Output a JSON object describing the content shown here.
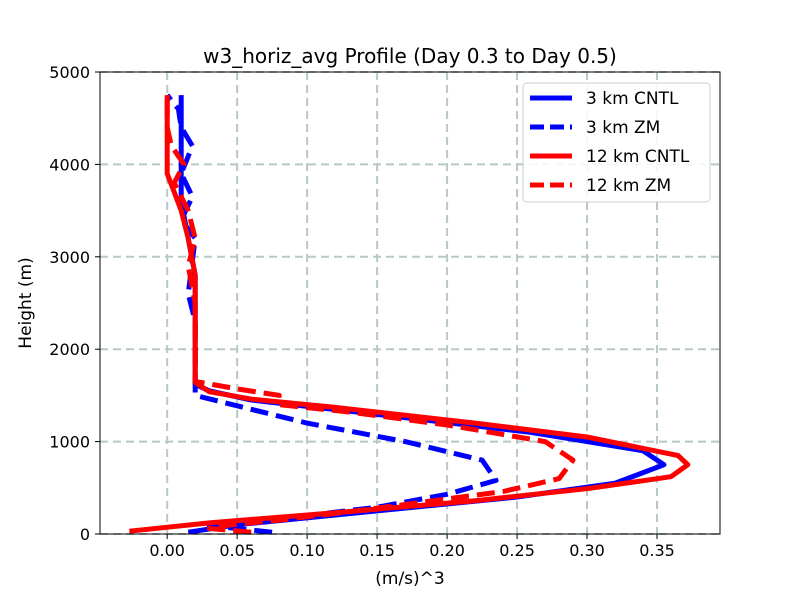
{
  "chart_data": {
    "type": "line",
    "title": "w3_horiz_avg Profile (Day 0.3 to Day 0.5)",
    "xlabel": "(m/s)^3",
    "ylabel": "Height (m)",
    "xlim": [
      -0.048,
      0.395
    ],
    "ylim": [
      0,
      5000
    ],
    "xticks": [
      0.0,
      0.05,
      0.1,
      0.15,
      0.2,
      0.25,
      0.3,
      0.35
    ],
    "xtick_labels": [
      "0.00",
      "0.05",
      "0.10",
      "0.15",
      "0.20",
      "0.25",
      "0.30",
      "0.35"
    ],
    "yticks": [
      0,
      1000,
      2000,
      3000,
      4000,
      5000
    ],
    "ytick_labels": [
      "0",
      "1000",
      "2000",
      "3000",
      "4000",
      "5000"
    ],
    "grid": true,
    "legend_position": "top-right",
    "series": [
      {
        "name": "3 km CNTL",
        "color": "#0000ff",
        "style": "solid",
        "points": [
          [
            0.015,
            20
          ],
          [
            0.05,
            100
          ],
          [
            0.15,
            250
          ],
          [
            0.25,
            400
          ],
          [
            0.32,
            550
          ],
          [
            0.355,
            750
          ],
          [
            0.34,
            900
          ],
          [
            0.26,
            1100
          ],
          [
            0.13,
            1330
          ],
          [
            0.06,
            1450
          ],
          [
            0.03,
            1550
          ],
          [
            0.02,
            1620
          ],
          [
            0.02,
            2500
          ],
          [
            0.02,
            2800
          ],
          [
            0.015,
            3200
          ],
          [
            0.01,
            3600
          ],
          [
            0.01,
            4000
          ],
          [
            0.01,
            4400
          ],
          [
            0.01,
            4750
          ]
        ]
      },
      {
        "name": "3 km ZM",
        "color": "#0000ff",
        "style": "dashed",
        "points": [
          [
            0.075,
            20
          ],
          [
            0.05,
            60
          ],
          [
            0.03,
            90
          ],
          [
            0.05,
            120
          ],
          [
            0.1,
            200
          ],
          [
            0.15,
            290
          ],
          [
            0.2,
            430
          ],
          [
            0.235,
            580
          ],
          [
            0.225,
            800
          ],
          [
            0.17,
            1000
          ],
          [
            0.1,
            1200
          ],
          [
            0.06,
            1350
          ],
          [
            0.02,
            1500
          ],
          [
            0.02,
            2300
          ],
          [
            0.015,
            2600
          ],
          [
            0.02,
            3200
          ],
          [
            0.01,
            3400
          ],
          [
            0.018,
            3650
          ],
          [
            0.01,
            3900
          ],
          [
            0.018,
            4200
          ],
          [
            0.01,
            4400
          ],
          [
            0.008,
            4600
          ],
          [
            0.0,
            4750
          ]
        ]
      },
      {
        "name": "12 km CNTL",
        "color": "#ff0000",
        "style": "solid",
        "points": [
          [
            -0.027,
            30
          ],
          [
            0.03,
            120
          ],
          [
            0.12,
            230
          ],
          [
            0.22,
            360
          ],
          [
            0.3,
            490
          ],
          [
            0.36,
            620
          ],
          [
            0.372,
            750
          ],
          [
            0.365,
            850
          ],
          [
            0.3,
            1050
          ],
          [
            0.22,
            1200
          ],
          [
            0.12,
            1370
          ],
          [
            0.06,
            1460
          ],
          [
            0.03,
            1540
          ],
          [
            0.02,
            1640
          ],
          [
            0.02,
            1750
          ],
          [
            0.02,
            2800
          ],
          [
            0.015,
            3200
          ],
          [
            0.01,
            3500
          ],
          [
            0.0,
            3900
          ],
          [
            0.0,
            4400
          ],
          [
            0.0,
            4750
          ]
        ]
      },
      {
        "name": "12 km ZM",
        "color": "#ff0000",
        "style": "dashed",
        "points": [
          [
            0.06,
            20
          ],
          [
            0.03,
            60
          ],
          [
            0.04,
            90
          ],
          [
            0.08,
            150
          ],
          [
            0.13,
            240
          ],
          [
            0.18,
            340
          ],
          [
            0.24,
            460
          ],
          [
            0.28,
            600
          ],
          [
            0.29,
            800
          ],
          [
            0.27,
            1000
          ],
          [
            0.2,
            1180
          ],
          [
            0.13,
            1320
          ],
          [
            0.08,
            1400
          ],
          [
            0.08,
            1500
          ],
          [
            0.05,
            1570
          ],
          [
            0.02,
            1650
          ],
          [
            0.02,
            2500
          ],
          [
            0.015,
            2900
          ],
          [
            0.02,
            3200
          ],
          [
            0.015,
            3500
          ],
          [
            0.005,
            3800
          ],
          [
            0.012,
            4000
          ],
          [
            0.003,
            4200
          ],
          [
            0.0,
            4400
          ],
          [
            0.0,
            4750
          ]
        ]
      }
    ]
  }
}
